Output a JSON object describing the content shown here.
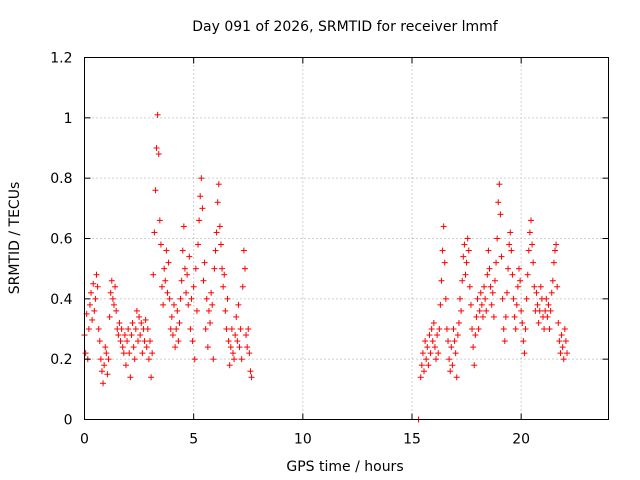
{
  "chart_data": {
    "type": "scatter",
    "title": "Day 091 of 2026, SRMTID for receiver lmmf",
    "xlabel": "GPS time / hours",
    "ylabel": "SRMTID / TECUs",
    "xlim": [
      0,
      24
    ],
    "ylim": [
      0,
      1.2
    ],
    "xticks": [
      0,
      5,
      10,
      15,
      20
    ],
    "yticks": [
      0,
      0.2,
      0.4,
      0.6,
      0.8,
      1,
      1.2
    ],
    "xtick_labels": [
      "0",
      "5",
      "10",
      "15",
      "20"
    ],
    "ytick_labels": [
      "0",
      "0.2",
      "0.4",
      "0.6",
      "0.8",
      "1",
      "1.2"
    ],
    "grid": true,
    "series": [
      {
        "name": "SRMTID",
        "color": "#ff0000",
        "marker": "+",
        "points": [
          [
            0.0,
            0.28
          ],
          [
            0.05,
            0.22
          ],
          [
            0.1,
            0.35
          ],
          [
            0.15,
            0.2
          ],
          [
            0.2,
            0.3
          ],
          [
            0.25,
            0.38
          ],
          [
            0.3,
            0.42
          ],
          [
            0.35,
            0.33
          ],
          [
            0.4,
            0.45
          ],
          [
            0.45,
            0.36
          ],
          [
            0.5,
            0.4
          ],
          [
            0.55,
            0.48
          ],
          [
            0.6,
            0.44
          ],
          [
            0.65,
            0.3
          ],
          [
            0.7,
            0.26
          ],
          [
            0.75,
            0.2
          ],
          [
            0.8,
            0.16
          ],
          [
            0.85,
            0.12
          ],
          [
            0.9,
            0.18
          ],
          [
            0.95,
            0.24
          ],
          [
            1.0,
            0.22
          ],
          [
            1.05,
            0.15
          ],
          [
            1.1,
            0.2
          ],
          [
            1.15,
            0.34
          ],
          [
            1.2,
            0.42
          ],
          [
            1.25,
            0.46
          ],
          [
            1.3,
            0.4
          ],
          [
            1.35,
            0.38
          ],
          [
            1.4,
            0.44
          ],
          [
            1.45,
            0.36
          ],
          [
            1.5,
            0.3
          ],
          [
            1.55,
            0.28
          ],
          [
            1.6,
            0.32
          ],
          [
            1.65,
            0.26
          ],
          [
            1.7,
            0.3
          ],
          [
            1.75,
            0.24
          ],
          [
            1.8,
            0.22
          ],
          [
            1.85,
            0.28
          ],
          [
            1.9,
            0.18
          ],
          [
            1.95,
            0.26
          ],
          [
            2.0,
            0.3
          ],
          [
            2.05,
            0.22
          ],
          [
            2.1,
            0.14
          ],
          [
            2.15,
            0.28
          ],
          [
            2.2,
            0.32
          ],
          [
            2.25,
            0.24
          ],
          [
            2.3,
            0.2
          ],
          [
            2.35,
            0.3
          ],
          [
            2.4,
            0.36
          ],
          [
            2.45,
            0.26
          ],
          [
            2.5,
            0.34
          ],
          [
            2.55,
            0.28
          ],
          [
            2.6,
            0.32
          ],
          [
            2.65,
            0.22
          ],
          [
            2.7,
            0.3
          ],
          [
            2.75,
            0.26
          ],
          [
            2.8,
            0.33
          ],
          [
            2.85,
            0.24
          ],
          [
            2.9,
            0.3
          ],
          [
            2.95,
            0.2
          ],
          [
            3.0,
            0.26
          ],
          [
            3.05,
            0.14
          ],
          [
            3.1,
            0.22
          ],
          [
            3.15,
            0.48
          ],
          [
            3.2,
            0.62
          ],
          [
            3.25,
            0.76
          ],
          [
            3.3,
            0.9
          ],
          [
            3.35,
            1.01
          ],
          [
            3.4,
            0.88
          ],
          [
            3.45,
            0.66
          ],
          [
            3.5,
            0.58
          ],
          [
            3.55,
            0.44
          ],
          [
            3.6,
            0.38
          ],
          [
            3.65,
            0.5
          ],
          [
            3.7,
            0.46
          ],
          [
            3.75,
            0.56
          ],
          [
            3.8,
            0.42
          ],
          [
            3.85,
            0.52
          ],
          [
            3.9,
            0.4
          ],
          [
            3.95,
            0.3
          ],
          [
            4.0,
            0.34
          ],
          [
            4.05,
            0.28
          ],
          [
            4.1,
            0.38
          ],
          [
            4.15,
            0.24
          ],
          [
            4.2,
            0.3
          ],
          [
            4.25,
            0.36
          ],
          [
            4.3,
            0.26
          ],
          [
            4.35,
            0.32
          ],
          [
            4.4,
            0.4
          ],
          [
            4.45,
            0.46
          ],
          [
            4.5,
            0.56
          ],
          [
            4.55,
            0.64
          ],
          [
            4.6,
            0.5
          ],
          [
            4.65,
            0.42
          ],
          [
            4.7,
            0.48
          ],
          [
            4.75,
            0.38
          ],
          [
            4.8,
            0.54
          ],
          [
            4.85,
            0.3
          ],
          [
            4.9,
            0.4
          ],
          [
            4.95,
            0.26
          ],
          [
            5.0,
            0.44
          ],
          [
            5.05,
            0.2
          ],
          [
            5.1,
            0.5
          ],
          [
            5.15,
            0.36
          ],
          [
            5.2,
            0.58
          ],
          [
            5.25,
            0.66
          ],
          [
            5.3,
            0.74
          ],
          [
            5.35,
            0.8
          ],
          [
            5.4,
            0.7
          ],
          [
            5.45,
            0.46
          ],
          [
            5.5,
            0.52
          ],
          [
            5.55,
            0.3
          ],
          [
            5.6,
            0.4
          ],
          [
            5.65,
            0.24
          ],
          [
            5.7,
            0.36
          ],
          [
            5.75,
            0.32
          ],
          [
            5.8,
            0.42
          ],
          [
            5.85,
            0.38
          ],
          [
            5.9,
            0.2
          ],
          [
            5.95,
            0.5
          ],
          [
            6.0,
            0.56
          ],
          [
            6.05,
            0.62
          ],
          [
            6.1,
            0.72
          ],
          [
            6.15,
            0.78
          ],
          [
            6.2,
            0.64
          ],
          [
            6.25,
            0.58
          ],
          [
            6.3,
            0.5
          ],
          [
            6.35,
            0.44
          ],
          [
            6.4,
            0.48
          ],
          [
            6.45,
            0.36
          ],
          [
            6.5,
            0.3
          ],
          [
            6.55,
            0.4
          ],
          [
            6.6,
            0.26
          ],
          [
            6.65,
            0.18
          ],
          [
            6.7,
            0.24
          ],
          [
            6.75,
            0.3
          ],
          [
            6.8,
            0.22
          ],
          [
            6.85,
            0.2
          ],
          [
            6.9,
            0.28
          ],
          [
            6.95,
            0.34
          ],
          [
            7.0,
            0.26
          ],
          [
            7.05,
            0.38
          ],
          [
            7.1,
            0.24
          ],
          [
            7.15,
            0.3
          ],
          [
            7.2,
            0.2
          ],
          [
            7.25,
            0.44
          ],
          [
            7.3,
            0.56
          ],
          [
            7.35,
            0.5
          ],
          [
            7.4,
            0.28
          ],
          [
            7.45,
            0.24
          ],
          [
            7.5,
            0.3
          ],
          [
            7.55,
            0.22
          ],
          [
            7.6,
            0.16
          ],
          [
            7.65,
            0.14
          ],
          [
            15.3,
            0.0
          ],
          [
            15.4,
            0.14
          ],
          [
            15.45,
            0.18
          ],
          [
            15.5,
            0.22
          ],
          [
            15.55,
            0.16
          ],
          [
            15.6,
            0.26
          ],
          [
            15.65,
            0.2
          ],
          [
            15.7,
            0.24
          ],
          [
            15.75,
            0.18
          ],
          [
            15.8,
            0.28
          ],
          [
            15.85,
            0.22
          ],
          [
            15.9,
            0.3
          ],
          [
            15.95,
            0.26
          ],
          [
            16.0,
            0.32
          ],
          [
            16.05,
            0.24
          ],
          [
            16.1,
            0.2
          ],
          [
            16.15,
            0.28
          ],
          [
            16.2,
            0.22
          ],
          [
            16.25,
            0.3
          ],
          [
            16.3,
            0.38
          ],
          [
            16.35,
            0.46
          ],
          [
            16.4,
            0.56
          ],
          [
            16.45,
            0.64
          ],
          [
            16.5,
            0.52
          ],
          [
            16.55,
            0.4
          ],
          [
            16.6,
            0.3
          ],
          [
            16.65,
            0.26
          ],
          [
            16.7,
            0.2
          ],
          [
            16.75,
            0.16
          ],
          [
            16.8,
            0.24
          ],
          [
            16.85,
            0.18
          ],
          [
            16.9,
            0.3
          ],
          [
            16.95,
            0.26
          ],
          [
            17.0,
            0.22
          ],
          [
            17.05,
            0.14
          ],
          [
            17.1,
            0.28
          ],
          [
            17.15,
            0.32
          ],
          [
            17.2,
            0.4
          ],
          [
            17.25,
            0.36
          ],
          [
            17.3,
            0.46
          ],
          [
            17.35,
            0.54
          ],
          [
            17.4,
            0.58
          ],
          [
            17.45,
            0.48
          ],
          [
            17.5,
            0.52
          ],
          [
            17.55,
            0.6
          ],
          [
            17.6,
            0.56
          ],
          [
            17.65,
            0.44
          ],
          [
            17.7,
            0.38
          ],
          [
            17.75,
            0.3
          ],
          [
            17.8,
            0.24
          ],
          [
            17.85,
            0.18
          ],
          [
            17.9,
            0.28
          ],
          [
            17.95,
            0.34
          ],
          [
            18.0,
            0.4
          ],
          [
            18.05,
            0.3
          ],
          [
            18.1,
            0.36
          ],
          [
            18.15,
            0.42
          ],
          [
            18.2,
            0.38
          ],
          [
            18.25,
            0.34
          ],
          [
            18.3,
            0.44
          ],
          [
            18.35,
            0.4
          ],
          [
            18.4,
            0.36
          ],
          [
            18.45,
            0.48
          ],
          [
            18.5,
            0.56
          ],
          [
            18.55,
            0.5
          ],
          [
            18.6,
            0.44
          ],
          [
            18.65,
            0.38
          ],
          [
            18.7,
            0.42
          ],
          [
            18.75,
            0.34
          ],
          [
            18.8,
            0.46
          ],
          [
            18.85,
            0.52
          ],
          [
            18.9,
            0.6
          ],
          [
            18.95,
            0.72
          ],
          [
            19.0,
            0.78
          ],
          [
            19.05,
            0.68
          ],
          [
            19.1,
            0.54
          ],
          [
            19.15,
            0.4
          ],
          [
            19.2,
            0.3
          ],
          [
            19.25,
            0.26
          ],
          [
            19.3,
            0.34
          ],
          [
            19.35,
            0.42
          ],
          [
            19.4,
            0.5
          ],
          [
            19.45,
            0.58
          ],
          [
            19.5,
            0.62
          ],
          [
            19.55,
            0.56
          ],
          [
            19.6,
            0.48
          ],
          [
            19.65,
            0.4
          ],
          [
            19.7,
            0.34
          ],
          [
            19.75,
            0.3
          ],
          [
            19.8,
            0.38
          ],
          [
            19.85,
            0.44
          ],
          [
            19.9,
            0.5
          ],
          [
            19.95,
            0.46
          ],
          [
            20.0,
            0.36
          ],
          [
            20.05,
            0.32
          ],
          [
            20.1,
            0.26
          ],
          [
            20.15,
            0.22
          ],
          [
            20.2,
            0.3
          ],
          [
            20.25,
            0.4
          ],
          [
            20.3,
            0.48
          ],
          [
            20.35,
            0.56
          ],
          [
            20.4,
            0.62
          ],
          [
            20.45,
            0.66
          ],
          [
            20.5,
            0.58
          ],
          [
            20.55,
            0.52
          ],
          [
            20.6,
            0.44
          ],
          [
            20.65,
            0.36
          ],
          [
            20.7,
            0.42
          ],
          [
            20.75,
            0.38
          ],
          [
            20.8,
            0.32
          ],
          [
            20.85,
            0.36
          ],
          [
            20.9,
            0.44
          ],
          [
            20.95,
            0.4
          ],
          [
            21.0,
            0.34
          ],
          [
            21.05,
            0.3
          ],
          [
            21.1,
            0.36
          ],
          [
            21.15,
            0.4
          ],
          [
            21.2,
            0.34
          ],
          [
            21.25,
            0.38
          ],
          [
            21.3,
            0.3
          ],
          [
            21.35,
            0.36
          ],
          [
            21.4,
            0.42
          ],
          [
            21.45,
            0.46
          ],
          [
            21.5,
            0.52
          ],
          [
            21.55,
            0.56
          ],
          [
            21.6,
            0.58
          ],
          [
            21.65,
            0.44
          ],
          [
            21.7,
            0.32
          ],
          [
            21.75,
            0.26
          ],
          [
            21.8,
            0.22
          ],
          [
            21.85,
            0.28
          ],
          [
            21.9,
            0.24
          ],
          [
            21.95,
            0.2
          ],
          [
            22.0,
            0.3
          ],
          [
            22.05,
            0.26
          ],
          [
            22.1,
            0.22
          ]
        ]
      }
    ]
  }
}
